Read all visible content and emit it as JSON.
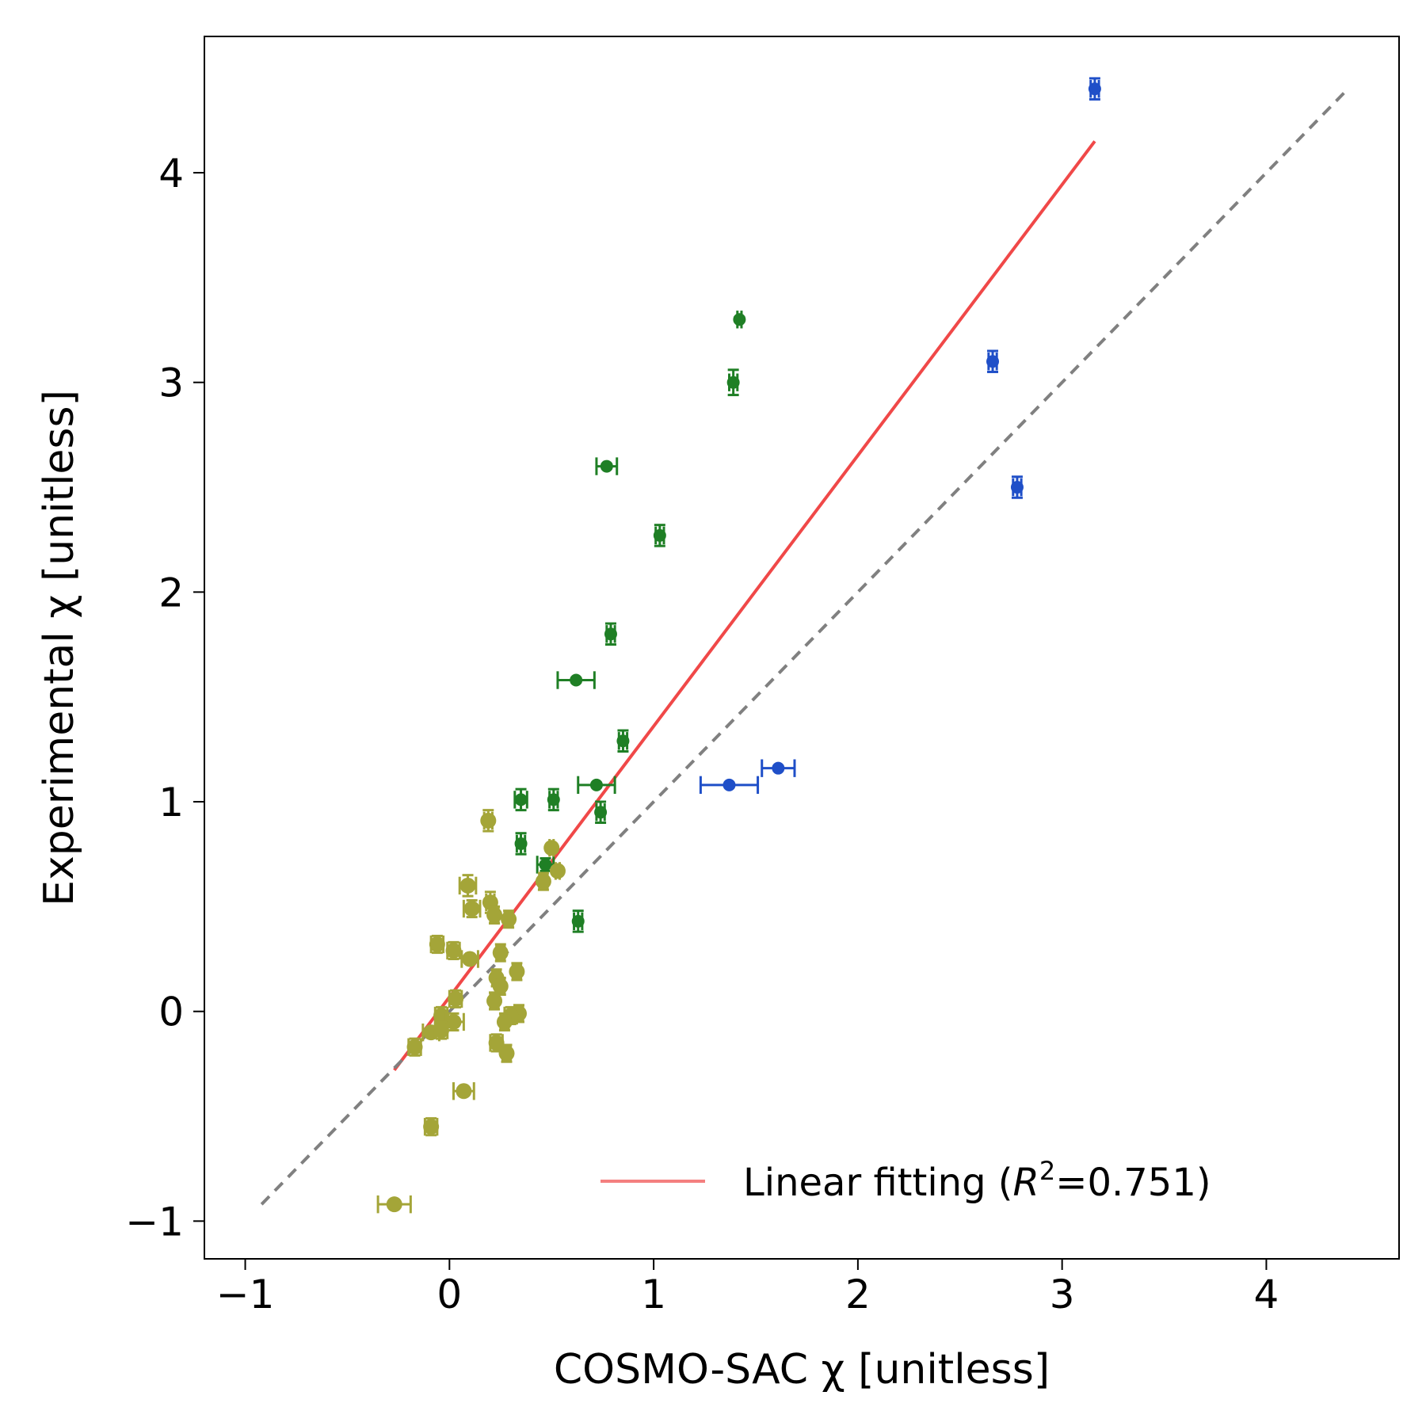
{
  "chart_data": {
    "type": "scatter",
    "xlabel": "COSMO-SAC χ  [unitless]",
    "ylabel": "Experimental χ  [unitless]",
    "xlim": [
      -1.2,
      4.65
    ],
    "ylim": [
      -1.18,
      4.65
    ],
    "x_ticks": [
      -1,
      0,
      1,
      2,
      3,
      4
    ],
    "y_ticks": [
      -1,
      0,
      1,
      2,
      3,
      4
    ],
    "x_tick_labels": [
      "−1",
      "0",
      "1",
      "2",
      "3",
      "4"
    ],
    "y_tick_labels": [
      "−1",
      "0",
      "1",
      "2",
      "3",
      "4"
    ],
    "grid": false,
    "legend_position": "bottom-right",
    "legend": {
      "label": "Linear fitting (",
      "r_symbol": "R",
      "r_exponent": "2",
      "r_value": "=0.751)"
    },
    "lines": [
      {
        "kind": "linear-fit",
        "color": "#f04848",
        "style": "solid",
        "x": [
          -0.27,
          3.16
        ],
        "y": [
          -0.28,
          4.15
        ]
      },
      {
        "kind": "identity",
        "color": "#808080",
        "style": "dashed",
        "x": [
          -0.92,
          4.38
        ],
        "y": [
          -0.92,
          4.38
        ]
      }
    ],
    "series": [
      {
        "color": "#1f4fc8",
        "marker_size": "small",
        "points": [
          {
            "x": 3.16,
            "y": 4.4,
            "xerr": 0.02,
            "yerr": 0.05
          },
          {
            "x": 2.66,
            "y": 3.1,
            "xerr": 0.02,
            "yerr": 0.05
          },
          {
            "x": 2.78,
            "y": 2.5,
            "xerr": 0.02,
            "yerr": 0.05
          },
          {
            "x": 1.37,
            "y": 1.08,
            "xerr": 0.14,
            "yerr": 0.01
          },
          {
            "x": 1.61,
            "y": 1.16,
            "xerr": 0.08,
            "yerr": 0.01
          }
        ]
      },
      {
        "color": "#1f7f25",
        "marker_size": "small",
        "points": [
          {
            "x": 1.42,
            "y": 3.3,
            "xerr": 0.01,
            "yerr": 0.01
          },
          {
            "x": 1.39,
            "y": 3.0,
            "xerr": 0.02,
            "yerr": 0.06
          },
          {
            "x": 0.77,
            "y": 2.6,
            "xerr": 0.05,
            "yerr": 0.01
          },
          {
            "x": 1.03,
            "y": 2.27,
            "xerr": 0.02,
            "yerr": 0.05
          },
          {
            "x": 0.79,
            "y": 1.8,
            "xerr": 0.02,
            "yerr": 0.05
          },
          {
            "x": 0.62,
            "y": 1.58,
            "xerr": 0.09,
            "yerr": 0.01
          },
          {
            "x": 0.85,
            "y": 1.29,
            "xerr": 0.02,
            "yerr": 0.05
          },
          {
            "x": 0.72,
            "y": 1.08,
            "xerr": 0.09,
            "yerr": 0.01
          },
          {
            "x": 0.35,
            "y": 1.01,
            "xerr": 0.03,
            "yerr": 0.05
          },
          {
            "x": 0.51,
            "y": 1.01,
            "xerr": 0.02,
            "yerr": 0.05
          },
          {
            "x": 0.74,
            "y": 0.95,
            "xerr": 0.02,
            "yerr": 0.05
          },
          {
            "x": 0.35,
            "y": 0.8,
            "xerr": 0.02,
            "yerr": 0.05
          },
          {
            "x": 0.47,
            "y": 0.7,
            "xerr": 0.04,
            "yerr": 0.03
          },
          {
            "x": 0.63,
            "y": 0.43,
            "xerr": 0.02,
            "yerr": 0.05
          }
        ]
      },
      {
        "color": "#a4a538",
        "marker_size": "large",
        "points": [
          {
            "x": 0.19,
            "y": 0.91,
            "xerr": 0.02,
            "yerr": 0.05
          },
          {
            "x": 0.5,
            "y": 0.78,
            "xerr": 0.01,
            "yerr": 0.01
          },
          {
            "x": 0.53,
            "y": 0.67,
            "xerr": 0.01,
            "yerr": 0.01
          },
          {
            "x": 0.46,
            "y": 0.62,
            "xerr": 0.02,
            "yerr": 0.04
          },
          {
            "x": 0.09,
            "y": 0.6,
            "xerr": 0.04,
            "yerr": 0.05
          },
          {
            "x": 0.2,
            "y": 0.52,
            "xerr": 0.02,
            "yerr": 0.05
          },
          {
            "x": 0.11,
            "y": 0.49,
            "xerr": 0.04,
            "yerr": 0.04
          },
          {
            "x": 0.22,
            "y": 0.46,
            "xerr": 0.02,
            "yerr": 0.04
          },
          {
            "x": 0.29,
            "y": 0.44,
            "xerr": 0.02,
            "yerr": 0.04
          },
          {
            "x": -0.06,
            "y": 0.32,
            "xerr": 0.03,
            "yerr": 0.04
          },
          {
            "x": 0.02,
            "y": 0.29,
            "xerr": 0.03,
            "yerr": 0.04
          },
          {
            "x": 0.25,
            "y": 0.28,
            "xerr": 0.02,
            "yerr": 0.04
          },
          {
            "x": 0.1,
            "y": 0.25,
            "xerr": 0.04,
            "yerr": 0.01
          },
          {
            "x": 0.33,
            "y": 0.19,
            "xerr": 0.02,
            "yerr": 0.04
          },
          {
            "x": 0.23,
            "y": 0.16,
            "xerr": 0.02,
            "yerr": 0.04
          },
          {
            "x": 0.25,
            "y": 0.12,
            "xerr": 0.02,
            "yerr": 0.04
          },
          {
            "x": 0.03,
            "y": 0.06,
            "xerr": 0.03,
            "yerr": 0.04
          },
          {
            "x": 0.22,
            "y": 0.05,
            "xerr": 0.02,
            "yerr": 0.04
          },
          {
            "x": -0.04,
            "y": -0.02,
            "xerr": 0.03,
            "yerr": 0.04
          },
          {
            "x": 0.34,
            "y": -0.01,
            "xerr": 0.02,
            "yerr": 0.04
          },
          {
            "x": 0.3,
            "y": -0.02,
            "xerr": 0.03,
            "yerr": 0.04
          },
          {
            "x": 0.02,
            "y": -0.05,
            "xerr": 0.05,
            "yerr": 0.04
          },
          {
            "x": 0.27,
            "y": -0.05,
            "xerr": 0.02,
            "yerr": 0.04
          },
          {
            "x": -0.09,
            "y": -0.1,
            "xerr": 0.04,
            "yerr": 0.01
          },
          {
            "x": -0.04,
            "y": -0.09,
            "xerr": 0.03,
            "yerr": 0.04
          },
          {
            "x": 0.23,
            "y": -0.15,
            "xerr": 0.03,
            "yerr": 0.04
          },
          {
            "x": -0.17,
            "y": -0.17,
            "xerr": 0.03,
            "yerr": 0.04
          },
          {
            "x": 0.28,
            "y": -0.2,
            "xerr": 0.02,
            "yerr": 0.04
          },
          {
            "x": 0.07,
            "y": -0.38,
            "xerr": 0.05,
            "yerr": 0.01
          },
          {
            "x": -0.09,
            "y": -0.55,
            "xerr": 0.03,
            "yerr": 0.04
          },
          {
            "x": -0.27,
            "y": -0.92,
            "xerr": 0.08,
            "yerr": 0.01
          }
        ]
      }
    ]
  }
}
